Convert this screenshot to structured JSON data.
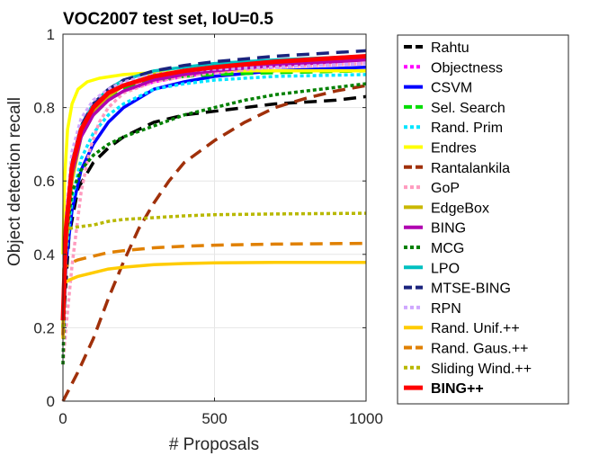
{
  "chart_data": {
    "type": "line",
    "title": "VOC2007 test set, IoU=0.5",
    "xlabel": "# Proposals",
    "ylabel": "Object detection recall",
    "xlim": [
      0,
      1000
    ],
    "ylim": [
      0,
      1
    ],
    "xticks": [
      0,
      500,
      1000
    ],
    "yticks": [
      0,
      0.2,
      0.4,
      0.6,
      0.8,
      1
    ],
    "xtick_labels": [
      "0",
      "500",
      "1000"
    ],
    "ytick_labels": [
      "0",
      "0.2",
      "0.4",
      "0.6",
      "0.8",
      "1"
    ],
    "grid": true,
    "legend_position": "outside-right",
    "series": [
      {
        "name": "Rahtu",
        "color": "#000000",
        "dash": "dashed",
        "bold": false,
        "points": [
          [
            0,
            0.2
          ],
          [
            20,
            0.45
          ],
          [
            50,
            0.58
          ],
          [
            100,
            0.65
          ],
          [
            150,
            0.69
          ],
          [
            200,
            0.72
          ],
          [
            300,
            0.76
          ],
          [
            400,
            0.78
          ],
          [
            500,
            0.79
          ],
          [
            600,
            0.8
          ],
          [
            700,
            0.81
          ],
          [
            800,
            0.815
          ],
          [
            900,
            0.82
          ],
          [
            1000,
            0.83
          ]
        ]
      },
      {
        "name": "Objectness",
        "color": "#ff00ff",
        "dash": "dotted",
        "bold": false,
        "points": [
          [
            0,
            0.22
          ],
          [
            10,
            0.45
          ],
          [
            30,
            0.63
          ],
          [
            60,
            0.72
          ],
          [
            100,
            0.78
          ],
          [
            150,
            0.82
          ],
          [
            200,
            0.845
          ],
          [
            300,
            0.87
          ],
          [
            400,
            0.885
          ],
          [
            500,
            0.895
          ],
          [
            700,
            0.91
          ],
          [
            1000,
            0.92
          ]
        ]
      },
      {
        "name": "CSVM",
        "color": "#0000ff",
        "dash": "solid",
        "bold": false,
        "points": [
          [
            0,
            0.18
          ],
          [
            10,
            0.38
          ],
          [
            30,
            0.52
          ],
          [
            60,
            0.63
          ],
          [
            100,
            0.7
          ],
          [
            150,
            0.76
          ],
          [
            200,
            0.8
          ],
          [
            300,
            0.85
          ],
          [
            400,
            0.87
          ],
          [
            500,
            0.885
          ],
          [
            700,
            0.9
          ],
          [
            1000,
            0.91
          ]
        ]
      },
      {
        "name": "Sel. Search",
        "color": "#00dd00",
        "dash": "dashed",
        "bold": false,
        "points": [
          [
            0,
            0.2
          ],
          [
            10,
            0.45
          ],
          [
            30,
            0.62
          ],
          [
            60,
            0.72
          ],
          [
            100,
            0.78
          ],
          [
            150,
            0.82
          ],
          [
            200,
            0.85
          ],
          [
            300,
            0.875
          ],
          [
            400,
            0.885
          ],
          [
            500,
            0.89
          ],
          [
            700,
            0.895
          ],
          [
            1000,
            0.9
          ]
        ]
      },
      {
        "name": "Rand. Prim",
        "color": "#00e5ff",
        "dash": "dotted",
        "bold": false,
        "points": [
          [
            0,
            0.2
          ],
          [
            10,
            0.4
          ],
          [
            30,
            0.55
          ],
          [
            60,
            0.66
          ],
          [
            100,
            0.73
          ],
          [
            150,
            0.78
          ],
          [
            200,
            0.81
          ],
          [
            300,
            0.85
          ],
          [
            400,
            0.865
          ],
          [
            500,
            0.875
          ],
          [
            700,
            0.885
          ],
          [
            1000,
            0.89
          ]
        ]
      },
      {
        "name": "Endres",
        "color": "#ffff00",
        "dash": "solid",
        "bold": false,
        "points": [
          [
            0,
            0.4
          ],
          [
            5,
            0.6
          ],
          [
            15,
            0.74
          ],
          [
            30,
            0.81
          ],
          [
            50,
            0.85
          ],
          [
            80,
            0.87
          ],
          [
            120,
            0.88
          ],
          [
            200,
            0.89
          ],
          [
            300,
            0.895
          ],
          [
            500,
            0.9
          ],
          [
            1000,
            0.9
          ]
        ]
      },
      {
        "name": "Rantalankila",
        "color": "#a0300a",
        "dash": "dashed",
        "bold": false,
        "points": [
          [
            0,
            0
          ],
          [
            50,
            0.08
          ],
          [
            100,
            0.17
          ],
          [
            150,
            0.28
          ],
          [
            200,
            0.38
          ],
          [
            250,
            0.47
          ],
          [
            300,
            0.54
          ],
          [
            350,
            0.6
          ],
          [
            400,
            0.65
          ],
          [
            500,
            0.71
          ],
          [
            600,
            0.76
          ],
          [
            700,
            0.8
          ],
          [
            800,
            0.825
          ],
          [
            900,
            0.845
          ],
          [
            1000,
            0.86
          ]
        ]
      },
      {
        "name": "GoP",
        "color": "#ff9bbf",
        "dash": "dotted",
        "bold": false,
        "points": [
          [
            0,
            0.1
          ],
          [
            10,
            0.2
          ],
          [
            30,
            0.37
          ],
          [
            60,
            0.57
          ],
          [
            90,
            0.69
          ],
          [
            120,
            0.76
          ],
          [
            150,
            0.8
          ],
          [
            200,
            0.84
          ],
          [
            300,
            0.87
          ],
          [
            400,
            0.885
          ],
          [
            500,
            0.895
          ],
          [
            700,
            0.91
          ],
          [
            1000,
            0.92
          ]
        ]
      },
      {
        "name": "EdgeBox",
        "color": "#c9b800",
        "dash": "solid",
        "bold": false,
        "points": [
          [
            0,
            0.2
          ],
          [
            10,
            0.42
          ],
          [
            30,
            0.6
          ],
          [
            60,
            0.72
          ],
          [
            100,
            0.79
          ],
          [
            150,
            0.83
          ],
          [
            200,
            0.86
          ],
          [
            300,
            0.89
          ],
          [
            400,
            0.9
          ],
          [
            500,
            0.91
          ],
          [
            700,
            0.92
          ],
          [
            1000,
            0.93
          ]
        ]
      },
      {
        "name": "BING",
        "color": "#b000b0",
        "dash": "solid",
        "bold": false,
        "points": [
          [
            0,
            0.22
          ],
          [
            10,
            0.45
          ],
          [
            30,
            0.62
          ],
          [
            60,
            0.72
          ],
          [
            100,
            0.78
          ],
          [
            150,
            0.82
          ],
          [
            200,
            0.845
          ],
          [
            300,
            0.875
          ],
          [
            400,
            0.89
          ],
          [
            500,
            0.9
          ],
          [
            700,
            0.915
          ],
          [
            1000,
            0.93
          ]
        ]
      },
      {
        "name": "MCG",
        "color": "#008000",
        "dash": "dotted",
        "bold": false,
        "points": [
          [
            0,
            0.1
          ],
          [
            10,
            0.45
          ],
          [
            30,
            0.57
          ],
          [
            60,
            0.63
          ],
          [
            100,
            0.67
          ],
          [
            150,
            0.7
          ],
          [
            200,
            0.72
          ],
          [
            300,
            0.75
          ],
          [
            400,
            0.78
          ],
          [
            500,
            0.8
          ],
          [
            600,
            0.82
          ],
          [
            700,
            0.835
          ],
          [
            800,
            0.845
          ],
          [
            900,
            0.855
          ],
          [
            1000,
            0.865
          ]
        ]
      },
      {
        "name": "LPO",
        "color": "#00c0c0",
        "dash": "solid",
        "bold": false,
        "points": [
          [
            0,
            0.22
          ],
          [
            10,
            0.47
          ],
          [
            30,
            0.65
          ],
          [
            60,
            0.75
          ],
          [
            100,
            0.81
          ],
          [
            150,
            0.85
          ],
          [
            200,
            0.875
          ],
          [
            300,
            0.9
          ],
          [
            400,
            0.91
          ],
          [
            500,
            0.92
          ],
          [
            700,
            0.93
          ],
          [
            1000,
            0.94
          ]
        ]
      },
      {
        "name": "MTSE-BING",
        "color": "#1a237e",
        "dash": "dashed",
        "bold": false,
        "points": [
          [
            0,
            0.22
          ],
          [
            10,
            0.47
          ],
          [
            30,
            0.65
          ],
          [
            60,
            0.75
          ],
          [
            100,
            0.81
          ],
          [
            150,
            0.85
          ],
          [
            200,
            0.875
          ],
          [
            300,
            0.9
          ],
          [
            400,
            0.915
          ],
          [
            500,
            0.925
          ],
          [
            700,
            0.94
          ],
          [
            1000,
            0.955
          ]
        ]
      },
      {
        "name": "RPN",
        "color": "#cfa8ff",
        "dash": "dotted",
        "bold": false,
        "points": [
          [
            0,
            0.25
          ],
          [
            10,
            0.5
          ],
          [
            30,
            0.68
          ],
          [
            60,
            0.77
          ],
          [
            100,
            0.82
          ],
          [
            150,
            0.85
          ],
          [
            200,
            0.87
          ],
          [
            300,
            0.89
          ],
          [
            400,
            0.9
          ],
          [
            500,
            0.905
          ],
          [
            700,
            0.91
          ],
          [
            1000,
            0.92
          ]
        ]
      },
      {
        "name": "Rand. Unif.++",
        "color": "#ffcc00",
        "dash": "solid",
        "bold": false,
        "points": [
          [
            0,
            0.17
          ],
          [
            2,
            0.32
          ],
          [
            20,
            0.33
          ],
          [
            50,
            0.34
          ],
          [
            100,
            0.35
          ],
          [
            150,
            0.36
          ],
          [
            200,
            0.365
          ],
          [
            300,
            0.372
          ],
          [
            400,
            0.375
          ],
          [
            500,
            0.377
          ],
          [
            700,
            0.378
          ],
          [
            1000,
            0.378
          ]
        ]
      },
      {
        "name": "Rand. Gaus.++",
        "color": "#e08000",
        "dash": "dashed",
        "bold": false,
        "points": [
          [
            0,
            0.18
          ],
          [
            3,
            0.36
          ],
          [
            20,
            0.375
          ],
          [
            50,
            0.385
          ],
          [
            100,
            0.395
          ],
          [
            150,
            0.405
          ],
          [
            200,
            0.41
          ],
          [
            300,
            0.418
          ],
          [
            400,
            0.422
          ],
          [
            500,
            0.425
          ],
          [
            700,
            0.428
          ],
          [
            1000,
            0.43
          ]
        ]
      },
      {
        "name": "Sliding Wind.++",
        "color": "#b8b800",
        "dash": "dotted",
        "bold": false,
        "points": [
          [
            0,
            0.2
          ],
          [
            5,
            0.45
          ],
          [
            20,
            0.47
          ],
          [
            50,
            0.475
          ],
          [
            100,
            0.48
          ],
          [
            150,
            0.49
          ],
          [
            200,
            0.495
          ],
          [
            300,
            0.5
          ],
          [
            400,
            0.505
          ],
          [
            500,
            0.508
          ],
          [
            700,
            0.51
          ],
          [
            1000,
            0.512
          ]
        ]
      },
      {
        "name": "BING++",
        "color": "#ff0000",
        "dash": "solid",
        "bold": true,
        "points": [
          [
            0,
            0.22
          ],
          [
            10,
            0.47
          ],
          [
            30,
            0.64
          ],
          [
            60,
            0.74
          ],
          [
            100,
            0.8
          ],
          [
            150,
            0.84
          ],
          [
            200,
            0.86
          ],
          [
            300,
            0.885
          ],
          [
            400,
            0.9
          ],
          [
            500,
            0.91
          ],
          [
            700,
            0.925
          ],
          [
            1000,
            0.94
          ]
        ]
      }
    ]
  }
}
